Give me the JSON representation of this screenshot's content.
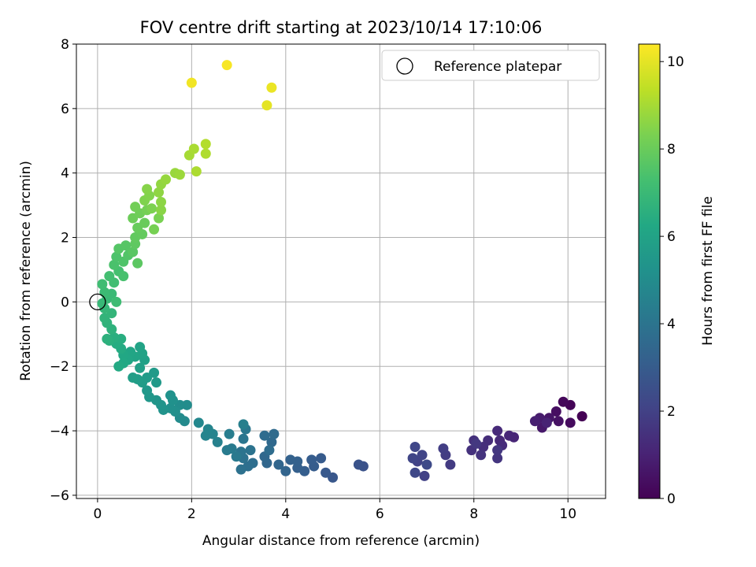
{
  "chart_data": {
    "type": "scatter",
    "title": "FOV centre drift starting at 2023/10/14 17:10:06",
    "xlabel": "Angular distance from reference (arcmin)",
    "ylabel": "Rotation from reference (arcmin)",
    "xlim": [
      -0.45,
      10.8
    ],
    "ylim": [
      -6.1,
      8.0
    ],
    "xticks": [
      0,
      2,
      4,
      6,
      8,
      10
    ],
    "yticks": [
      -6,
      -4,
      -2,
      0,
      2,
      4,
      6,
      8
    ],
    "grid": true,
    "legend": {
      "placement": "top-right",
      "entries": [
        "Reference platepar"
      ]
    },
    "reference_point": {
      "x": 0.0,
      "y": 0.0,
      "label": "Reference platepar"
    },
    "colorbar": {
      "label": "Hours from first FF file",
      "min": 0,
      "max": 10.4,
      "ticks": [
        0,
        2,
        4,
        6,
        8,
        10
      ],
      "colormap": "viridis"
    },
    "series": [
      {
        "points": [
          {
            "x": 10.3,
            "y": -3.55,
            "t": 0.0
          },
          {
            "x": 10.05,
            "y": -3.2,
            "t": 0.1
          },
          {
            "x": 9.9,
            "y": -3.1,
            "t": 0.2
          },
          {
            "x": 10.05,
            "y": -3.75,
            "t": 0.3
          },
          {
            "x": 9.75,
            "y": -3.4,
            "t": 0.4
          },
          {
            "x": 9.8,
            "y": -3.7,
            "t": 0.5
          },
          {
            "x": 9.6,
            "y": -3.6,
            "t": 0.6
          },
          {
            "x": 9.45,
            "y": -3.9,
            "t": 0.7
          },
          {
            "x": 9.4,
            "y": -3.6,
            "t": 0.8
          },
          {
            "x": 9.3,
            "y": -3.7,
            "t": 0.9
          },
          {
            "x": 9.55,
            "y": -3.75,
            "t": 1.0
          },
          {
            "x": 8.85,
            "y": -4.2,
            "t": 1.1
          },
          {
            "x": 8.75,
            "y": -4.15,
            "t": 1.15
          },
          {
            "x": 8.55,
            "y": -4.3,
            "t": 1.2
          },
          {
            "x": 8.5,
            "y": -4.0,
            "t": 1.25
          },
          {
            "x": 8.6,
            "y": -4.45,
            "t": 1.3
          },
          {
            "x": 8.3,
            "y": -4.3,
            "t": 1.35
          },
          {
            "x": 8.2,
            "y": -4.5,
            "t": 1.4
          },
          {
            "x": 8.0,
            "y": -4.3,
            "t": 1.45
          },
          {
            "x": 7.95,
            "y": -4.6,
            "t": 1.5
          },
          {
            "x": 8.15,
            "y": -4.75,
            "t": 1.55
          },
          {
            "x": 8.5,
            "y": -4.85,
            "t": 1.6
          },
          {
            "x": 8.5,
            "y": -4.6,
            "t": 1.65
          },
          {
            "x": 8.05,
            "y": -4.4,
            "t": 1.7
          },
          {
            "x": 7.5,
            "y": -5.05,
            "t": 1.8
          },
          {
            "x": 7.4,
            "y": -4.75,
            "t": 1.85
          },
          {
            "x": 7.35,
            "y": -4.55,
            "t": 1.9
          },
          {
            "x": 6.95,
            "y": -5.4,
            "t": 2.0
          },
          {
            "x": 6.8,
            "y": -4.95,
            "t": 2.05
          },
          {
            "x": 6.9,
            "y": -4.75,
            "t": 2.1
          },
          {
            "x": 6.7,
            "y": -4.85,
            "t": 2.15
          },
          {
            "x": 6.75,
            "y": -4.5,
            "t": 2.2
          },
          {
            "x": 6.75,
            "y": -5.3,
            "t": 2.25
          },
          {
            "x": 7.0,
            "y": -5.05,
            "t": 2.3
          },
          {
            "x": 5.65,
            "y": -5.1,
            "t": 2.6
          },
          {
            "x": 5.55,
            "y": -5.05,
            "t": 2.65
          },
          {
            "x": 5.0,
            "y": -5.45,
            "t": 2.8
          },
          {
            "x": 4.85,
            "y": -5.3,
            "t": 2.9
          },
          {
            "x": 4.75,
            "y": -4.85,
            "t": 2.95
          },
          {
            "x": 4.6,
            "y": -5.1,
            "t": 3.0
          },
          {
            "x": 4.55,
            "y": -4.9,
            "t": 3.05
          },
          {
            "x": 4.4,
            "y": -5.25,
            "t": 3.1
          },
          {
            "x": 4.25,
            "y": -5.15,
            "t": 3.15
          },
          {
            "x": 4.25,
            "y": -4.95,
            "t": 3.2
          },
          {
            "x": 4.1,
            "y": -4.9,
            "t": 3.25
          },
          {
            "x": 4.0,
            "y": -5.25,
            "t": 3.35
          },
          {
            "x": 3.85,
            "y": -5.05,
            "t": 3.4
          },
          {
            "x": 3.6,
            "y": -5.0,
            "t": 3.45
          },
          {
            "x": 3.55,
            "y": -4.8,
            "t": 3.5
          },
          {
            "x": 3.7,
            "y": -4.35,
            "t": 3.55
          },
          {
            "x": 3.75,
            "y": -4.1,
            "t": 3.6
          },
          {
            "x": 3.55,
            "y": -4.15,
            "t": 3.65
          },
          {
            "x": 3.65,
            "y": -4.6,
            "t": 3.7
          },
          {
            "x": 3.3,
            "y": -5.0,
            "t": 3.75
          },
          {
            "x": 3.2,
            "y": -5.1,
            "t": 3.8
          },
          {
            "x": 3.05,
            "y": -5.2,
            "t": 3.85
          },
          {
            "x": 3.1,
            "y": -4.85,
            "t": 3.9
          },
          {
            "x": 3.25,
            "y": -4.6,
            "t": 3.95
          },
          {
            "x": 3.05,
            "y": -4.65,
            "t": 4.0
          },
          {
            "x": 3.1,
            "y": -4.25,
            "t": 4.05
          },
          {
            "x": 3.15,
            "y": -3.95,
            "t": 4.1
          },
          {
            "x": 2.95,
            "y": -4.8,
            "t": 4.2
          },
          {
            "x": 2.85,
            "y": -4.55,
            "t": 4.25
          },
          {
            "x": 2.75,
            "y": -4.6,
            "t": 4.3
          },
          {
            "x": 2.8,
            "y": -4.1,
            "t": 4.35
          },
          {
            "x": 3.1,
            "y": -3.8,
            "t": 4.45
          },
          {
            "x": 2.55,
            "y": -4.35,
            "t": 4.55
          },
          {
            "x": 2.45,
            "y": -4.1,
            "t": 4.6
          },
          {
            "x": 2.3,
            "y": -4.15,
            "t": 4.65
          },
          {
            "x": 2.35,
            "y": -3.95,
            "t": 4.7
          },
          {
            "x": 2.15,
            "y": -3.75,
            "t": 4.8
          },
          {
            "x": 1.85,
            "y": -3.7,
            "t": 4.9
          },
          {
            "x": 1.75,
            "y": -3.6,
            "t": 4.95
          },
          {
            "x": 1.9,
            "y": -3.2,
            "t": 5.0
          },
          {
            "x": 1.75,
            "y": -3.2,
            "t": 5.05
          },
          {
            "x": 1.65,
            "y": -3.4,
            "t": 5.1
          },
          {
            "x": 1.55,
            "y": -3.3,
            "t": 5.15
          },
          {
            "x": 1.6,
            "y": -3.05,
            "t": 5.2
          },
          {
            "x": 1.55,
            "y": -2.9,
            "t": 5.25
          },
          {
            "x": 1.4,
            "y": -3.35,
            "t": 5.3
          },
          {
            "x": 1.35,
            "y": -3.2,
            "t": 5.35
          },
          {
            "x": 1.25,
            "y": -3.05,
            "t": 5.4
          },
          {
            "x": 1.1,
            "y": -2.95,
            "t": 5.45
          },
          {
            "x": 1.05,
            "y": -2.75,
            "t": 5.5
          },
          {
            "x": 1.25,
            "y": -2.5,
            "t": 5.55
          },
          {
            "x": 1.2,
            "y": -2.2,
            "t": 5.6
          },
          {
            "x": 1.05,
            "y": -2.35,
            "t": 5.65
          },
          {
            "x": 0.95,
            "y": -2.5,
            "t": 5.7
          },
          {
            "x": 0.85,
            "y": -2.4,
            "t": 5.75
          },
          {
            "x": 0.75,
            "y": -2.35,
            "t": 5.8
          },
          {
            "x": 0.9,
            "y": -2.05,
            "t": 5.85
          },
          {
            "x": 1.0,
            "y": -1.8,
            "t": 5.9
          },
          {
            "x": 0.95,
            "y": -1.6,
            "t": 5.95
          },
          {
            "x": 0.9,
            "y": -1.4,
            "t": 6.0
          },
          {
            "x": 0.8,
            "y": -1.7,
            "t": 6.05
          },
          {
            "x": 0.7,
            "y": -1.55,
            "t": 6.1
          },
          {
            "x": 0.65,
            "y": -1.8,
            "t": 6.15
          },
          {
            "x": 0.55,
            "y": -1.65,
            "t": 6.2
          },
          {
            "x": 0.55,
            "y": -1.9,
            "t": 6.25
          },
          {
            "x": 0.45,
            "y": -2.0,
            "t": 6.3
          },
          {
            "x": 0.5,
            "y": -1.45,
            "t": 6.35
          },
          {
            "x": 0.4,
            "y": -1.3,
            "t": 6.4
          },
          {
            "x": 0.5,
            "y": -1.15,
            "t": 6.45
          },
          {
            "x": 0.35,
            "y": -1.1,
            "t": 6.5
          },
          {
            "x": 0.25,
            "y": -1.2,
            "t": 6.55
          },
          {
            "x": 0.2,
            "y": -1.15,
            "t": 6.6
          },
          {
            "x": 0.3,
            "y": -0.85,
            "t": 6.65
          },
          {
            "x": 0.2,
            "y": -0.65,
            "t": 6.7
          },
          {
            "x": 0.15,
            "y": -0.5,
            "t": 6.75
          },
          {
            "x": 0.3,
            "y": -0.35,
            "t": 6.8
          },
          {
            "x": 0.15,
            "y": -0.2,
            "t": 6.85
          },
          {
            "x": 0.1,
            "y": -0.05,
            "t": 6.9
          },
          {
            "x": 0.2,
            "y": 0.1,
            "t": 6.95
          },
          {
            "x": 0.3,
            "y": 0.25,
            "t": 7.0
          },
          {
            "x": 0.15,
            "y": 0.3,
            "t": 7.05
          },
          {
            "x": 0.4,
            "y": 0.0,
            "t": 7.1
          },
          {
            "x": 0.1,
            "y": 0.55,
            "t": 7.15
          },
          {
            "x": 0.35,
            "y": 0.6,
            "t": 7.2
          },
          {
            "x": 0.25,
            "y": 0.8,
            "t": 7.25
          },
          {
            "x": 0.45,
            "y": 0.95,
            "t": 7.3
          },
          {
            "x": 0.55,
            "y": 0.8,
            "t": 7.35
          },
          {
            "x": 0.35,
            "y": 1.15,
            "t": 7.4
          },
          {
            "x": 0.4,
            "y": 1.4,
            "t": 7.45
          },
          {
            "x": 0.55,
            "y": 1.25,
            "t": 7.5
          },
          {
            "x": 0.65,
            "y": 1.45,
            "t": 7.55
          },
          {
            "x": 0.45,
            "y": 1.65,
            "t": 7.6
          },
          {
            "x": 0.6,
            "y": 1.75,
            "t": 7.65
          },
          {
            "x": 0.75,
            "y": 1.55,
            "t": 7.7
          },
          {
            "x": 0.85,
            "y": 1.2,
            "t": 7.75
          },
          {
            "x": 0.8,
            "y": 1.8,
            "t": 7.8
          },
          {
            "x": 0.8,
            "y": 2.0,
            "t": 7.85
          },
          {
            "x": 0.95,
            "y": 2.1,
            "t": 7.9
          },
          {
            "x": 0.85,
            "y": 2.3,
            "t": 7.95
          },
          {
            "x": 1.0,
            "y": 2.45,
            "t": 8.0
          },
          {
            "x": 0.75,
            "y": 2.6,
            "t": 8.05
          },
          {
            "x": 0.9,
            "y": 2.75,
            "t": 8.1
          },
          {
            "x": 0.8,
            "y": 2.95,
            "t": 8.15
          },
          {
            "x": 1.05,
            "y": 2.85,
            "t": 8.2
          },
          {
            "x": 1.2,
            "y": 2.25,
            "t": 8.25
          },
          {
            "x": 1.3,
            "y": 2.6,
            "t": 8.3
          },
          {
            "x": 1.15,
            "y": 2.9,
            "t": 8.35
          },
          {
            "x": 1.0,
            "y": 3.15,
            "t": 8.4
          },
          {
            "x": 1.1,
            "y": 3.3,
            "t": 8.45
          },
          {
            "x": 1.05,
            "y": 3.5,
            "t": 8.5
          },
          {
            "x": 1.35,
            "y": 2.85,
            "t": 8.55
          },
          {
            "x": 1.35,
            "y": 3.1,
            "t": 8.6
          },
          {
            "x": 1.3,
            "y": 3.4,
            "t": 8.65
          },
          {
            "x": 1.35,
            "y": 3.65,
            "t": 8.7
          },
          {
            "x": 1.45,
            "y": 3.8,
            "t": 8.75
          },
          {
            "x": 1.65,
            "y": 4.0,
            "t": 8.8
          },
          {
            "x": 1.75,
            "y": 3.95,
            "t": 8.85
          },
          {
            "x": 1.95,
            "y": 4.55,
            "t": 9.0
          },
          {
            "x": 2.05,
            "y": 4.75,
            "t": 9.05
          },
          {
            "x": 2.1,
            "y": 4.05,
            "t": 9.1
          },
          {
            "x": 2.3,
            "y": 4.6,
            "t": 9.15
          },
          {
            "x": 2.3,
            "y": 4.9,
            "t": 9.2
          },
          {
            "x": 3.6,
            "y": 6.1,
            "t": 10.0
          },
          {
            "x": 3.7,
            "y": 6.65,
            "t": 10.1
          },
          {
            "x": 2.0,
            "y": 6.8,
            "t": 10.2
          },
          {
            "x": 2.75,
            "y": 7.35,
            "t": 10.3
          }
        ]
      }
    ]
  },
  "colors": {
    "grid": "#b0b0b0",
    "axes": "#000000",
    "background": "#ffffff"
  }
}
